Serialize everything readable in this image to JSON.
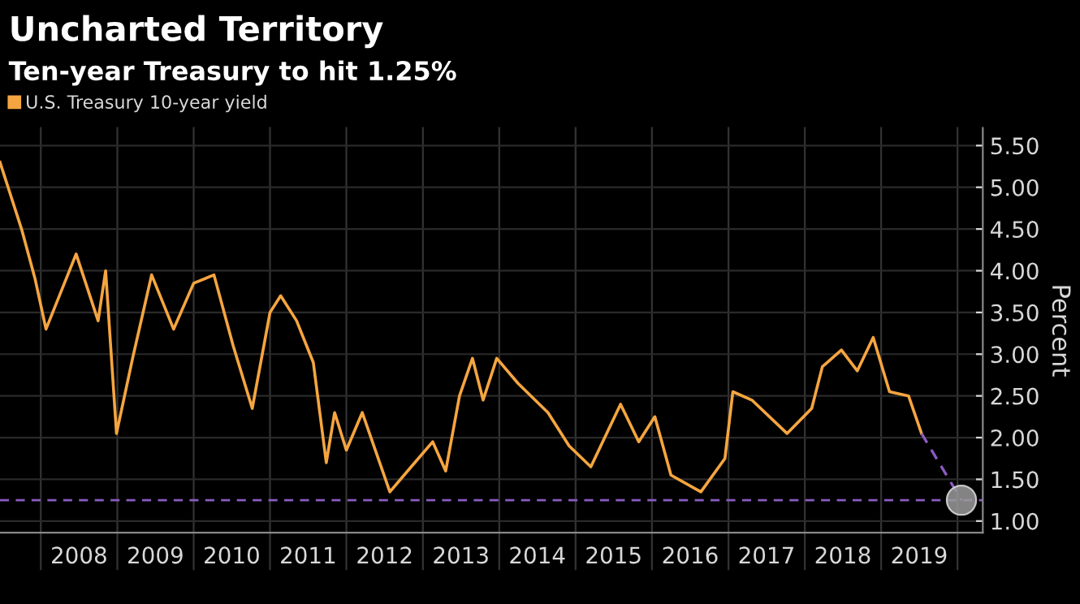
{
  "chart_data": {
    "type": "line",
    "title": "Uncharted Territory",
    "subtitle": "Ten-year Treasury to hit 1.25%",
    "ylabel": "Percent",
    "series": [
      {
        "name": "U.S. Treasury 10-year yield",
        "color": "#f5a540",
        "x": [
          "2007-06-20",
          "2007-10-01",
          "2007-12-05",
          "2008-01-26",
          "2008-06-18",
          "2008-10-01",
          "2008-11-06",
          "2008-12-28",
          "2009-03-15",
          "2009-06-14",
          "2009-09-27",
          "2010-01-01",
          "2010-04-08",
          "2010-07-09",
          "2010-10-08",
          "2011-01-01",
          "2011-02-21",
          "2011-05-08",
          "2011-07-27",
          "2011-09-27",
          "2011-11-06",
          "2012-01-01",
          "2012-03-17",
          "2012-07-27",
          "2012-11-06",
          "2013-02-17",
          "2013-04-20",
          "2013-06-25",
          "2013-08-26",
          "2013-10-16",
          "2013-12-20",
          "2014-04-01",
          "2014-08-22",
          "2014-12-01",
          "2015-03-15",
          "2015-08-04",
          "2015-10-30",
          "2016-01-15",
          "2016-04-01",
          "2016-08-22",
          "2016-12-15",
          "2017-01-22",
          "2017-04-23",
          "2017-10-08",
          "2018-02-03",
          "2018-03-26",
          "2018-06-25",
          "2018-09-09",
          "2018-11-24",
          "2019-02-10",
          "2019-05-12",
          "2019-07-13"
        ],
        "values": [
          5.3,
          4.5,
          3.9,
          3.3,
          4.2,
          3.4,
          4.0,
          2.05,
          2.95,
          3.95,
          3.3,
          3.85,
          3.95,
          3.1,
          2.35,
          3.5,
          3.7,
          3.4,
          2.9,
          1.7,
          2.3,
          1.85,
          2.3,
          1.35,
          1.65,
          1.95,
          1.6,
          2.5,
          2.95,
          2.45,
          2.95,
          2.65,
          2.3,
          1.9,
          1.65,
          2.4,
          1.95,
          2.25,
          1.55,
          1.35,
          1.75,
          2.55,
          2.45,
          2.05,
          2.35,
          2.85,
          3.05,
          2.8,
          3.2,
          2.55,
          2.5,
          2.05
        ]
      },
      {
        "type": "line",
        "line_style": "dashed",
        "color": "#8a5cc0",
        "x": [
          "2019-07-13",
          "2020-01-20"
        ],
        "values": [
          2.05,
          1.25
        ]
      },
      {
        "type": "scatter",
        "marker": "circle",
        "color": "#9a9a9a",
        "x": [
          "2020-01-20"
        ],
        "values": [
          1.25
        ]
      }
    ],
    "ref_lines": [
      {
        "axis": "y",
        "value": 1.25,
        "color": "#8a5cc0",
        "line_style": "dashed"
      }
    ],
    "xlim": [
      "2007-06-20",
      "2020-05-01"
    ],
    "xticks": [
      {
        "value": "2008-01-01",
        "label": null
      },
      {
        "value": "2009-01-01",
        "label": null
      },
      {
        "value": "2010-01-01",
        "label": null
      },
      {
        "value": "2011-01-01",
        "label": null
      },
      {
        "value": "2012-01-01",
        "label": null
      },
      {
        "value": "2013-01-01",
        "label": null
      },
      {
        "value": "2014-01-01",
        "label": null
      },
      {
        "value": "2015-01-01",
        "label": null
      },
      {
        "value": "2016-01-01",
        "label": null
      },
      {
        "value": "2017-01-01",
        "label": null
      },
      {
        "value": "2018-01-01",
        "label": null
      },
      {
        "value": "2019-01-01",
        "label": null
      },
      {
        "value": "2020-01-01",
        "label": null
      },
      {
        "value": "2008-07-02",
        "label": "2008"
      },
      {
        "value": "2009-07-02",
        "label": "2009"
      },
      {
        "value": "2010-07-02",
        "label": "2010"
      },
      {
        "value": "2011-07-02",
        "label": "2011"
      },
      {
        "value": "2012-07-02",
        "label": "2012"
      },
      {
        "value": "2013-07-02",
        "label": "2013"
      },
      {
        "value": "2014-07-02",
        "label": "2014"
      },
      {
        "value": "2015-07-02",
        "label": "2015"
      },
      {
        "value": "2016-07-02",
        "label": "2016"
      },
      {
        "value": "2017-07-02",
        "label": "2017"
      },
      {
        "value": "2018-07-02",
        "label": "2018"
      },
      {
        "value": "2019-07-02",
        "label": "2019"
      }
    ],
    "ylim": [
      0.86,
      5.71
    ],
    "yticks": [
      {
        "value": 1,
        "label": "1.00"
      },
      {
        "value": 1.5,
        "label": "1.50"
      },
      {
        "value": 2,
        "label": "2.00"
      },
      {
        "value": 2.5,
        "label": "2.50"
      },
      {
        "value": 3,
        "label": "3.00"
      },
      {
        "value": 3.5,
        "label": "3.50"
      },
      {
        "value": 4,
        "label": "4.00"
      },
      {
        "value": 4.5,
        "label": "4.50"
      },
      {
        "value": 5,
        "label": "5.00"
      },
      {
        "value": 5.5,
        "label": "5.50"
      }
    ],
    "grid": true,
    "legend": "top left"
  }
}
